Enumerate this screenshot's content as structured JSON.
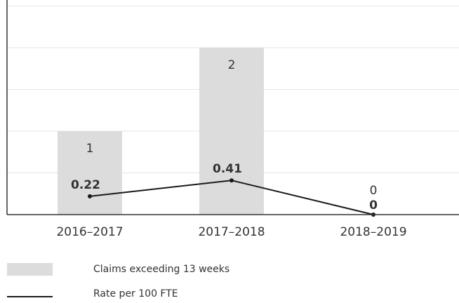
{
  "chart_data": {
    "type": "bar-line",
    "categories": [
      "2016–2017",
      "2017–2018",
      "2018–2019"
    ],
    "series": [
      {
        "name": "Claims exceeding 13 weeks",
        "type": "bar",
        "color": "#dcdcdc",
        "values": [
          1,
          2,
          0
        ]
      },
      {
        "name": "Rate per 100 FTE",
        "type": "line",
        "color": "#1a1a1a",
        "values": [
          0.22,
          0.41,
          0
        ]
      }
    ],
    "ylim": [
      0,
      2.5
    ],
    "yticks": [
      0,
      0.5,
      1,
      1.5,
      2,
      2.5
    ],
    "grid": true
  }
}
